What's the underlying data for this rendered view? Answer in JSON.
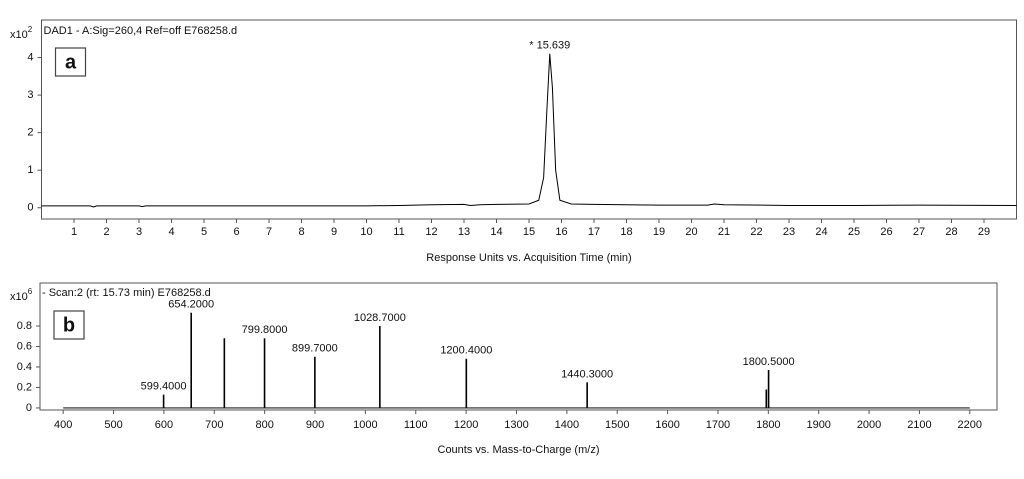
{
  "chart_data": [
    {
      "type": "line",
      "title": "DAD1 - A:Sig=260,4  Ref=off E768258.d",
      "panel_label": "a",
      "y_multiplier": {
        "base": "x10",
        "exponent": "2"
      },
      "xlabel": "Response Units vs. Acquisition Time (min)",
      "x": [
        0.0,
        1.5,
        1.6,
        1.7,
        3.0,
        3.1,
        3.2,
        5.0,
        8.0,
        10.0,
        11.0,
        12.0,
        13.0,
        13.2,
        13.5,
        14.0,
        15.0,
        15.3,
        15.45,
        15.55,
        15.639,
        15.72,
        15.82,
        15.95,
        16.3,
        17.0,
        19.0,
        20.5,
        20.7,
        21.0,
        23.0,
        25.0,
        27.0,
        30.0
      ],
      "values": [
        0.05,
        0.05,
        0.02,
        0.05,
        0.05,
        0.03,
        0.05,
        0.05,
        0.05,
        0.05,
        0.06,
        0.08,
        0.09,
        0.06,
        0.08,
        0.09,
        0.1,
        0.2,
        0.8,
        2.6,
        4.1,
        3.2,
        1.0,
        0.2,
        0.1,
        0.09,
        0.07,
        0.07,
        0.1,
        0.08,
        0.06,
        0.06,
        0.07,
        0.06
      ],
      "color": "#000000",
      "xlim": [
        0,
        30
      ],
      "ylim": [
        -0.3,
        5.0
      ],
      "xticks": [
        1,
        2,
        3,
        4,
        5,
        6,
        7,
        8,
        9,
        10,
        11,
        12,
        13,
        14,
        15,
        16,
        17,
        18,
        19,
        20,
        21,
        22,
        23,
        24,
        25,
        26,
        27,
        28,
        29
      ],
      "yticks": [
        0,
        1,
        2,
        3,
        4
      ],
      "annotations": [
        {
          "text": "* 15.639",
          "x": 15.639,
          "y": 4.1
        }
      ]
    },
    {
      "type": "stick",
      "title": "- Scan:2 (rt: 15.73 min) E768258.d",
      "panel_label": "b",
      "y_multiplier": {
        "base": "x10",
        "exponent": "6"
      },
      "xlabel": "Counts vs. Mass-to-Charge (m/z)",
      "x": [
        599.4,
        654.2,
        720.0,
        799.8,
        899.7,
        1028.7,
        1200.4,
        1440.3,
        1796.0,
        1800.5
      ],
      "values": [
        0.13,
        0.93,
        0.68,
        0.68,
        0.5,
        0.8,
        0.48,
        0.25,
        0.18,
        0.37
      ],
      "value_labels": [
        "599.4000",
        "654.2000",
        null,
        "799.8000",
        "899.7000",
        "1028.7000",
        "1200.4000",
        "1440.3000",
        null,
        "1800.5000"
      ],
      "color": "#000000",
      "xlim": [
        354,
        2254
      ],
      "ylim": [
        -0.02,
        1.22
      ],
      "xticks": [
        400,
        500,
        600,
        700,
        800,
        900,
        1000,
        1100,
        1200,
        1300,
        1400,
        1500,
        1600,
        1700,
        1800,
        1900,
        2000,
        2100,
        2200
      ],
      "yticks": [
        0,
        0.2,
        0.4,
        0.6,
        0.8
      ]
    }
  ]
}
